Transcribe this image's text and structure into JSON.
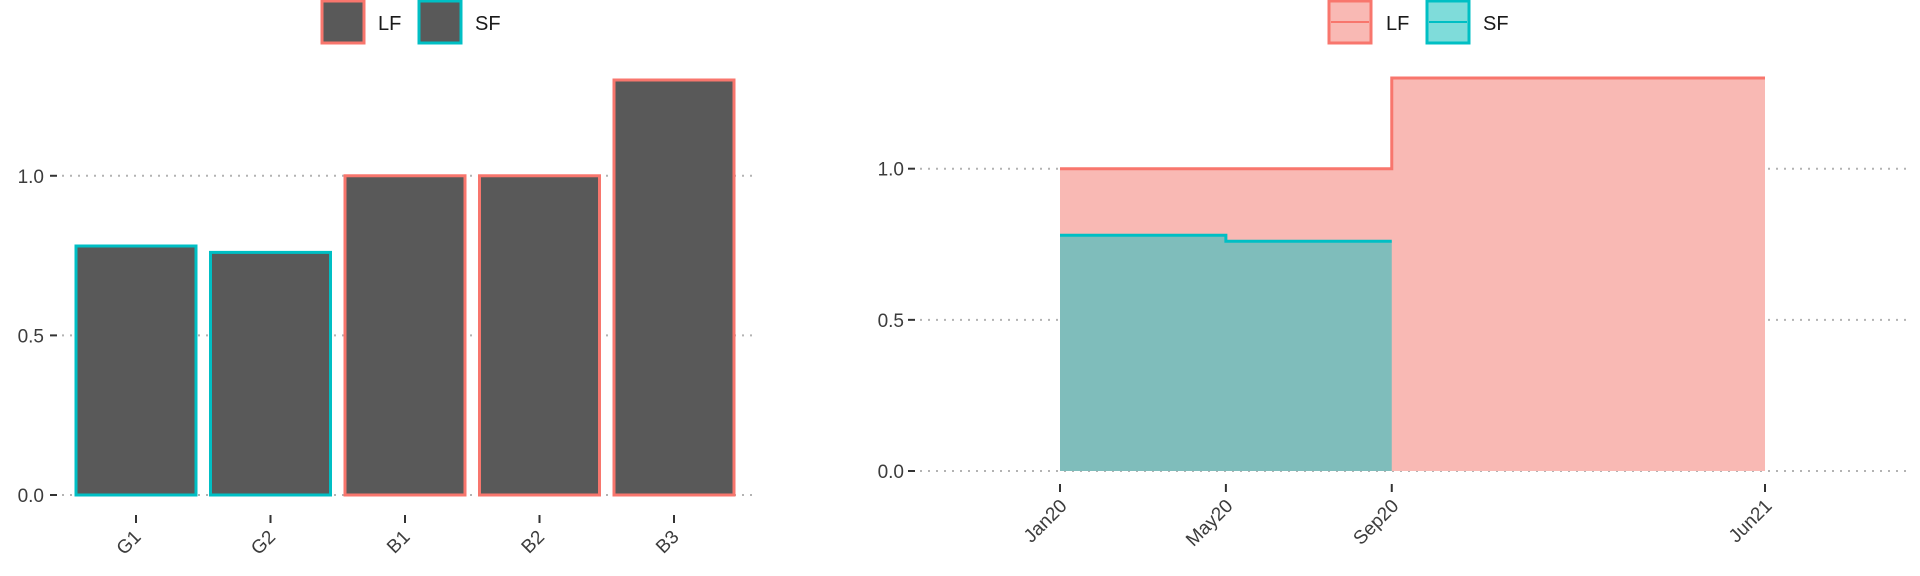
{
  "colors": {
    "lf": "#F8766D",
    "sf": "#00BFC4",
    "bar_fill": "#595959",
    "lf_area": "#F9B9B4",
    "sf_area": "#7FBDBB",
    "lf_legend_fill": "#F9B9B4",
    "sf_legend_fill": "#7FDCDA"
  },
  "chart_data": [
    {
      "type": "bar",
      "categories": [
        "G1",
        "G2",
        "B1",
        "B2",
        "B3"
      ],
      "values": [
        0.78,
        0.76,
        1.0,
        1.0,
        1.3
      ],
      "groups": [
        "SF",
        "SF",
        "LF",
        "LF",
        "LF"
      ],
      "ylim": [
        0,
        1.3
      ],
      "yticks": [
        0.0,
        0.5,
        1.0
      ],
      "ytick_labels": [
        "0.0",
        "0.5",
        "1.0"
      ],
      "grid": "horizontal-dotted",
      "legend": {
        "placement": "top-center",
        "entries": [
          "LF",
          "SF"
        ]
      }
    },
    {
      "type": "area",
      "x_tick_labels": [
        "Jan20",
        "May20",
        "Sep20",
        "Jun21"
      ],
      "x_tick_dates": [
        "2020-01",
        "2020-05",
        "2020-09",
        "2021-06"
      ],
      "yticks": [
        0.0,
        0.5,
        1.0
      ],
      "ytick_labels": [
        "0.0",
        "0.5",
        "1.0"
      ],
      "ylim": [
        0,
        1.3
      ],
      "grid": "horizontal-dotted",
      "legend": {
        "placement": "top-center",
        "entries": [
          "LF",
          "SF"
        ]
      },
      "series": [
        {
          "name": "LF",
          "step": true,
          "x": [
            "2020-01",
            "2020-09",
            "2021-06"
          ],
          "y": [
            1.0,
            1.3,
            1.3
          ]
        },
        {
          "name": "SF",
          "step": true,
          "x": [
            "2020-01",
            "2020-05",
            "2020-09"
          ],
          "y": [
            0.78,
            0.76,
            0.76
          ]
        }
      ]
    }
  ]
}
